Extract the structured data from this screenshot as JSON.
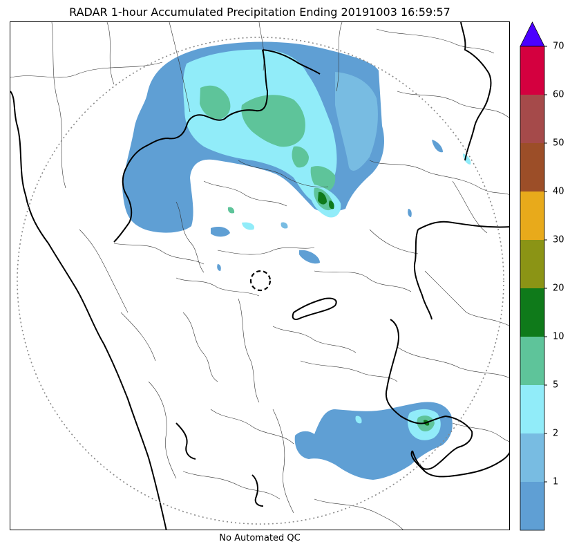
{
  "title": "RADAR 1-hour Accumulated Precipitation Ending 20191003 16:59:57",
  "footer": "No Automated QC",
  "colorbar": {
    "labels": [
      "1",
      "2",
      "5",
      "10",
      "20",
      "30",
      "40",
      "50",
      "60",
      "70"
    ],
    "colors": [
      "#5f9fd4",
      "#78bce2",
      "#91ecf9",
      "#5ec49a",
      "#0f7a1a",
      "#8b9415",
      "#e8aa1b",
      "#9c4e28",
      "#a54a4a",
      "#d4003f"
    ],
    "extend_color": "#4b00ff"
  },
  "map": {
    "radar_marker": "radar-site-ring-icon",
    "range_ring": "dotted",
    "colors": {
      "light_blue": "#5f9fd4",
      "cyan": "#91ecf9",
      "green": "#5ec49a",
      "dark_green": "#0f7a1a"
    }
  }
}
